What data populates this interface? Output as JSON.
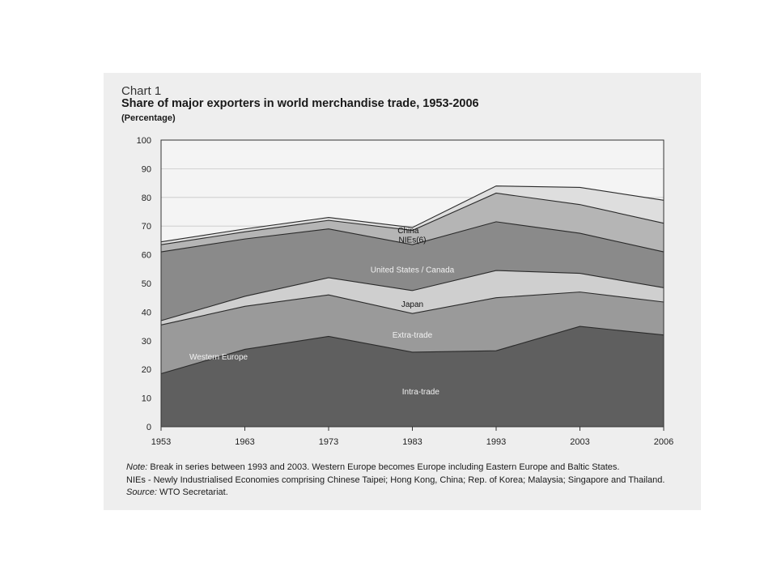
{
  "header": {
    "chart_no": "Chart 1",
    "title": "Share of major exporters in world merchandise trade, 1953-2006",
    "unit": "(Percentage)"
  },
  "notes": {
    "note_label": "Note:",
    "note_text": "Break in series between 1993 and 2003. Western Europe becomes Europe including Eastern Europe and Baltic States.",
    "nies_text": "NIEs - Newly Industrialised Economies comprising Chinese Taipei; Hong Kong, China; Rep. of Korea; Malaysia; Singapore and Thailand.",
    "source_label": "Source:",
    "source_text": "WTO Secretariat."
  },
  "chart_data": {
    "type": "area",
    "stacked": true,
    "x": [
      "1953",
      "1963",
      "1973",
      "1983",
      "1993",
      "2003",
      "2006"
    ],
    "ylim": [
      0,
      100
    ],
    "yticks": [
      "0",
      "10",
      "20",
      "30",
      "40",
      "50",
      "60",
      "70",
      "80",
      "90",
      "100"
    ],
    "grid": true,
    "series": [
      {
        "name": "Intra-trade",
        "values": [
          18.5,
          27,
          31.5,
          26,
          26.5,
          35,
          32
        ],
        "color": "#5f5f5f"
      },
      {
        "name": "Extra-trade",
        "values": [
          17,
          15,
          14.5,
          13.5,
          18.5,
          12,
          11.5
        ],
        "color": "#9a9a9a"
      },
      {
        "name": "Japan",
        "values": [
          1.5,
          3.5,
          6,
          8,
          9.5,
          6.5,
          5
        ],
        "color": "#cfcfcf"
      },
      {
        "name": "United States / Canada",
        "values": [
          24,
          20,
          17,
          16,
          17,
          14,
          12.5
        ],
        "color": "#8a8a8a"
      },
      {
        "name": "NIEs(6)",
        "values": [
          2.5,
          2.5,
          3,
          5,
          10,
          10,
          10
        ],
        "color": "#b5b5b5"
      },
      {
        "name": "China",
        "values": [
          1,
          1,
          1,
          1,
          2.5,
          6,
          8
        ],
        "color": "#dedede"
      }
    ],
    "group_labels": [
      "Western Europe"
    ]
  }
}
